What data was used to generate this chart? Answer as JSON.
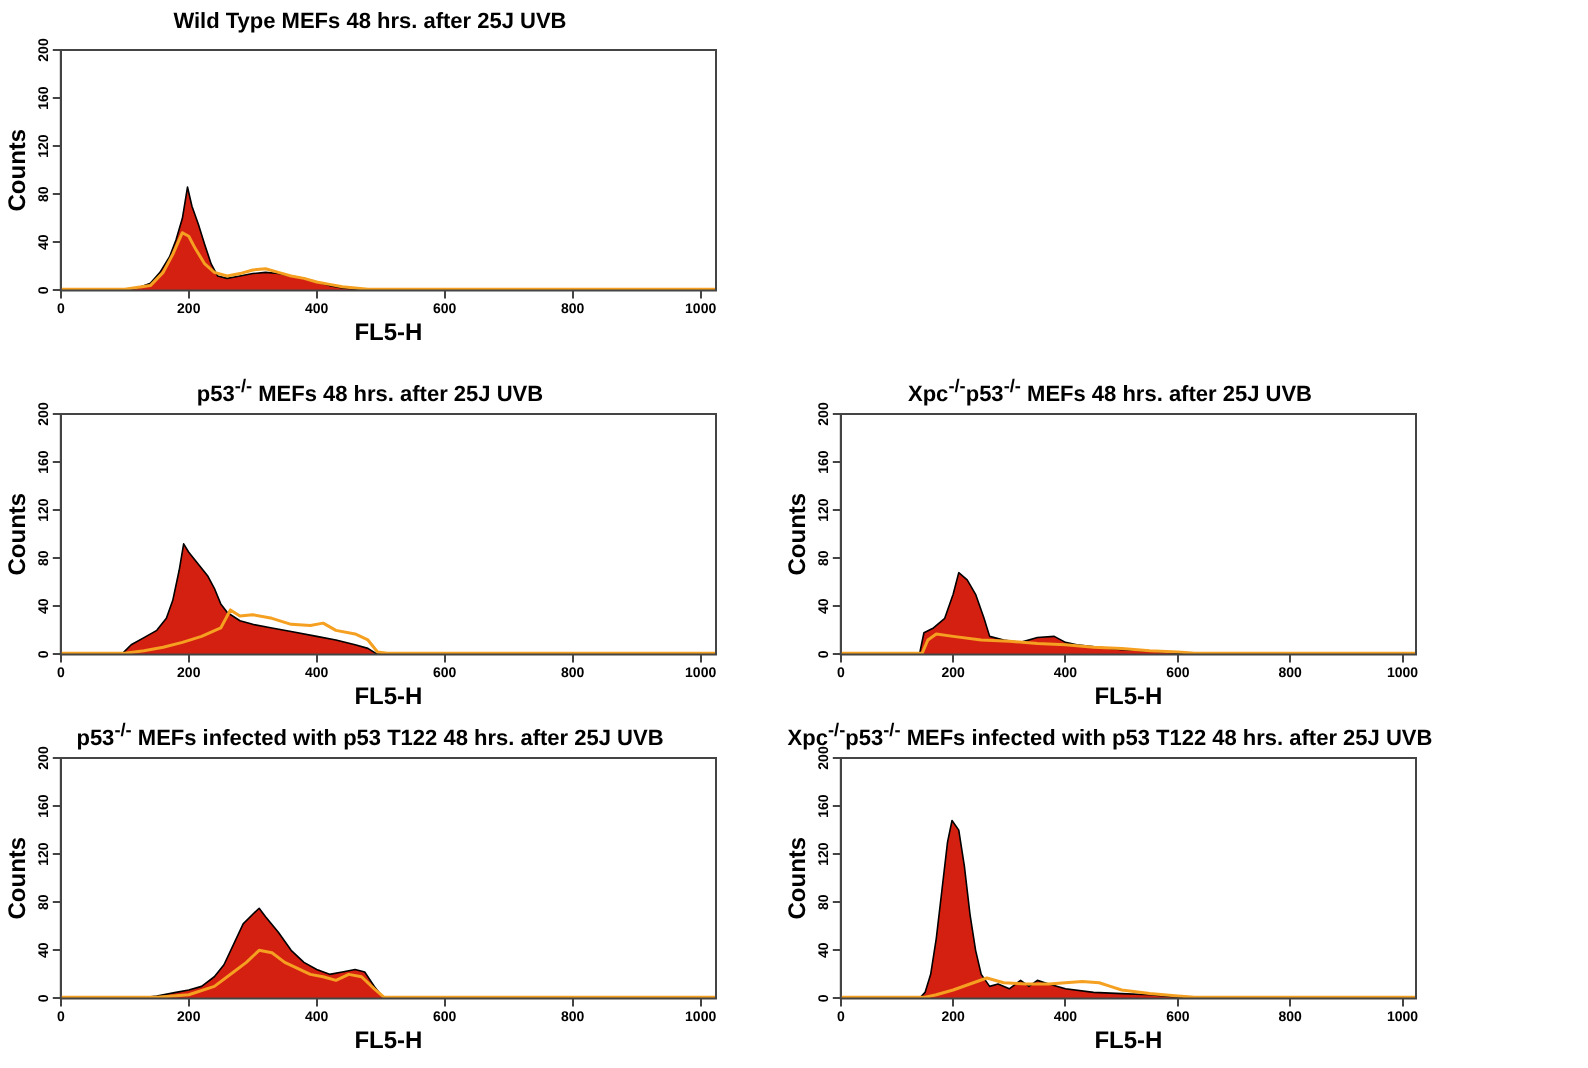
{
  "chart_data": [
    {
      "type": "area",
      "title": "Wild Type MEFs 48 hrs. after 25J UVB",
      "xlabel": "FL5-H",
      "ylabel": "Counts",
      "xlim": [
        0,
        1024
      ],
      "xticks": [
        0,
        200,
        400,
        600,
        800,
        1000
      ],
      "ylim": [
        0,
        200
      ],
      "yticks": [
        0,
        40,
        80,
        120,
        160,
        200
      ],
      "grid": false,
      "legend": false,
      "series": [
        {
          "type": "area",
          "color": "#d42010",
          "x": [
            0,
            100,
            120,
            140,
            155,
            170,
            180,
            190,
            198,
            205,
            215,
            225,
            235,
            245,
            260,
            280,
            300,
            320,
            340,
            360,
            380,
            400,
            420,
            440,
            460,
            480,
            1023
          ],
          "values": [
            0,
            0,
            2,
            6,
            15,
            28,
            42,
            60,
            86,
            70,
            55,
            38,
            22,
            12,
            10,
            12,
            14,
            15,
            14,
            12,
            10,
            7,
            4,
            2,
            1,
            0,
            0
          ]
        },
        {
          "type": "line",
          "color": "#f5a020",
          "x": [
            0,
            100,
            140,
            160,
            175,
            190,
            200,
            210,
            225,
            240,
            260,
            280,
            300,
            320,
            340,
            360,
            380,
            400,
            420,
            440,
            460,
            480,
            500,
            1023
          ],
          "values": [
            1,
            1,
            4,
            15,
            30,
            48,
            45,
            35,
            22,
            15,
            12,
            14,
            17,
            18,
            15,
            12,
            10,
            7,
            5,
            3,
            2,
            1,
            1,
            1
          ]
        }
      ]
    },
    {
      "type": "area",
      "title": "p53$^{-/-}$ MEFs 48 hrs. after 25J UVB",
      "xlabel": "FL5-H",
      "ylabel": "Counts",
      "xlim": [
        0,
        1024
      ],
      "xticks": [
        0,
        200,
        400,
        600,
        800,
        1000
      ],
      "ylim": [
        0,
        200
      ],
      "yticks": [
        0,
        40,
        80,
        120,
        160,
        200
      ],
      "grid": false,
      "legend": false,
      "series": [
        {
          "type": "area",
          "color": "#d42010",
          "x": [
            0,
            95,
            110,
            130,
            150,
            165,
            175,
            185,
            192,
            200,
            215,
            230,
            240,
            250,
            260,
            280,
            300,
            330,
            360,
            400,
            430,
            460,
            480,
            495,
            1023
          ],
          "values": [
            0,
            0,
            8,
            14,
            20,
            30,
            45,
            70,
            92,
            85,
            75,
            65,
            55,
            42,
            35,
            28,
            25,
            22,
            19,
            15,
            12,
            8,
            5,
            0,
            0
          ]
        },
        {
          "type": "line",
          "color": "#f5a020",
          "x": [
            0,
            100,
            130,
            160,
            190,
            220,
            250,
            265,
            280,
            300,
            330,
            360,
            390,
            410,
            430,
            460,
            480,
            495,
            510,
            1023
          ],
          "values": [
            1,
            1,
            3,
            6,
            10,
            15,
            22,
            37,
            32,
            33,
            30,
            25,
            24,
            26,
            20,
            17,
            12,
            2,
            1,
            1
          ]
        }
      ]
    },
    {
      "type": "area",
      "title": "Xpc$^{-/-}$p53$^{-/-}$ MEFs 48 hrs. after 25J UVB",
      "xlabel": "FL5-H",
      "ylabel": "Counts",
      "xlim": [
        0,
        1024
      ],
      "xticks": [
        0,
        200,
        400,
        600,
        800,
        1000
      ],
      "ylim": [
        0,
        200
      ],
      "yticks": [
        0,
        40,
        80,
        120,
        160,
        200
      ],
      "grid": false,
      "legend": false,
      "series": [
        {
          "type": "area",
          "color": "#d42010",
          "x": [
            0,
            140,
            148,
            165,
            185,
            200,
            210,
            225,
            240,
            255,
            265,
            290,
            320,
            350,
            380,
            400,
            420,
            460,
            500,
            550,
            600,
            620,
            1023
          ],
          "values": [
            0,
            0,
            18,
            22,
            30,
            50,
            68,
            62,
            50,
            30,
            15,
            12,
            10,
            14,
            15,
            10,
            8,
            6,
            4,
            3,
            1,
            0,
            0
          ]
        },
        {
          "type": "line",
          "color": "#f5a020",
          "x": [
            0,
            145,
            155,
            170,
            200,
            250,
            300,
            350,
            400,
            450,
            500,
            550,
            600,
            630,
            1023
          ],
          "values": [
            1,
            1,
            12,
            17,
            15,
            12,
            11,
            9,
            8,
            6,
            5,
            3,
            2,
            1,
            1
          ]
        }
      ]
    },
    {
      "type": "area",
      "title": "p53$^{-/-}$ MEFs infected with p53 T122 48 hrs. after 25J UVB",
      "xlabel": "FL5-H",
      "ylabel": "Counts",
      "xlim": [
        0,
        1024
      ],
      "xticks": [
        0,
        200,
        400,
        600,
        800,
        1000
      ],
      "ylim": [
        0,
        200
      ],
      "yticks": [
        0,
        40,
        80,
        120,
        160,
        200
      ],
      "grid": false,
      "legend": false,
      "series": [
        {
          "type": "area",
          "color": "#d42010",
          "x": [
            0,
            120,
            150,
            180,
            200,
            220,
            240,
            255,
            270,
            285,
            300,
            310,
            320,
            340,
            360,
            380,
            400,
            420,
            440,
            460,
            475,
            490,
            505,
            1023
          ],
          "values": [
            0,
            0,
            2,
            5,
            7,
            10,
            18,
            28,
            45,
            62,
            70,
            75,
            68,
            55,
            40,
            30,
            24,
            20,
            22,
            24,
            22,
            10,
            0,
            0
          ]
        },
        {
          "type": "line",
          "color": "#f5a020",
          "x": [
            0,
            150,
            200,
            240,
            270,
            290,
            310,
            330,
            350,
            370,
            390,
            410,
            430,
            450,
            470,
            490,
            505,
            1023
          ],
          "values": [
            1,
            1,
            3,
            10,
            22,
            30,
            40,
            38,
            30,
            25,
            20,
            18,
            15,
            20,
            18,
            8,
            1,
            1
          ]
        }
      ]
    },
    {
      "type": "area",
      "title": "Xpc$^{-/-}$p53$^{-/-}$ MEFs infected with p53 T122 48 hrs. after 25J UVB",
      "xlabel": "FL5-H",
      "ylabel": "Counts",
      "xlim": [
        0,
        1024
      ],
      "xticks": [
        0,
        200,
        400,
        600,
        800,
        1000
      ],
      "ylim": [
        0,
        200
      ],
      "yticks": [
        0,
        40,
        80,
        120,
        160,
        200
      ],
      "grid": false,
      "legend": false,
      "series": [
        {
          "type": "area",
          "color": "#d42010",
          "x": [
            0,
            140,
            150,
            160,
            170,
            180,
            190,
            198,
            210,
            220,
            230,
            240,
            250,
            265,
            280,
            300,
            320,
            335,
            350,
            370,
            400,
            450,
            500,
            550,
            600,
            620,
            1023
          ],
          "values": [
            0,
            0,
            5,
            20,
            50,
            90,
            130,
            148,
            140,
            110,
            70,
            40,
            20,
            10,
            12,
            8,
            15,
            10,
            15,
            12,
            8,
            5,
            4,
            3,
            1,
            0,
            0
          ]
        },
        {
          "type": "line",
          "color": "#f5a020",
          "x": [
            0,
            150,
            170,
            200,
            230,
            260,
            290,
            330,
            370,
            400,
            430,
            460,
            480,
            500,
            550,
            600,
            630,
            1023
          ],
          "values": [
            1,
            1,
            3,
            7,
            12,
            17,
            13,
            12,
            12,
            13,
            14,
            13,
            10,
            7,
            4,
            2,
            1,
            1
          ]
        }
      ]
    }
  ]
}
